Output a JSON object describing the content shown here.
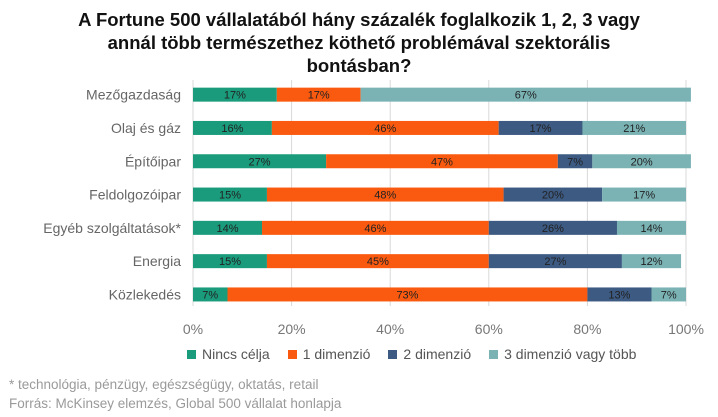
{
  "chart_data": {
    "type": "bar",
    "orientation": "horizontal",
    "stacked": true,
    "title_lines": [
      "A Fortune 500 vállalatából hány százalék foglalkozik 1, 2, 3 vagy",
      "annál több természethez köthető problémával szektorális",
      "bontásban?"
    ],
    "categories": [
      "Mezőgazdaság",
      "Olaj és gáz",
      "Építőipar",
      "Feldolgozóipar",
      "Egyéb szolgáltatások*",
      "Energia",
      "Közlekedés"
    ],
    "series": [
      {
        "name": "Nincs célja",
        "color": "#1a9b7c",
        "values": [
          17,
          16,
          27,
          15,
          14,
          15,
          7
        ],
        "labels": [
          "17%",
          "16%",
          "27%",
          "15%",
          "14%",
          "15%",
          "7%"
        ]
      },
      {
        "name": "1 dimenzió",
        "color": "#fa5a0f",
        "values": [
          17,
          46,
          47,
          48,
          46,
          45,
          73
        ],
        "labels": [
          "17%",
          "46%",
          "47%",
          "48%",
          "46%",
          "45%",
          "73%"
        ]
      },
      {
        "name": "2 dimenzió",
        "color": "#3c5a82",
        "values": [
          0,
          17,
          7,
          20,
          26,
          27,
          13
        ],
        "labels": [
          "",
          "17%",
          "7%",
          "20%",
          "26%",
          "27%",
          "13%"
        ]
      },
      {
        "name": "3 dimenzió vagy több",
        "color": "#7bb3b5",
        "values": [
          67,
          21,
          20,
          17,
          14,
          12,
          7
        ],
        "labels": [
          "67%",
          "21%",
          "20%",
          "17%",
          "14%",
          "12%",
          "7%"
        ]
      }
    ],
    "xlim": [
      0,
      100
    ],
    "x_ticks": [
      "0%",
      "20%",
      "40%",
      "60%",
      "80%",
      "100%"
    ],
    "grid": true,
    "legend_position": "bottom"
  },
  "footnotes": [
    "* technológia, pénzügy, egészségügy, oktatás, retail",
    "Forrás: McKinsey elemzés, Global 500 vállalat honlapja"
  ]
}
